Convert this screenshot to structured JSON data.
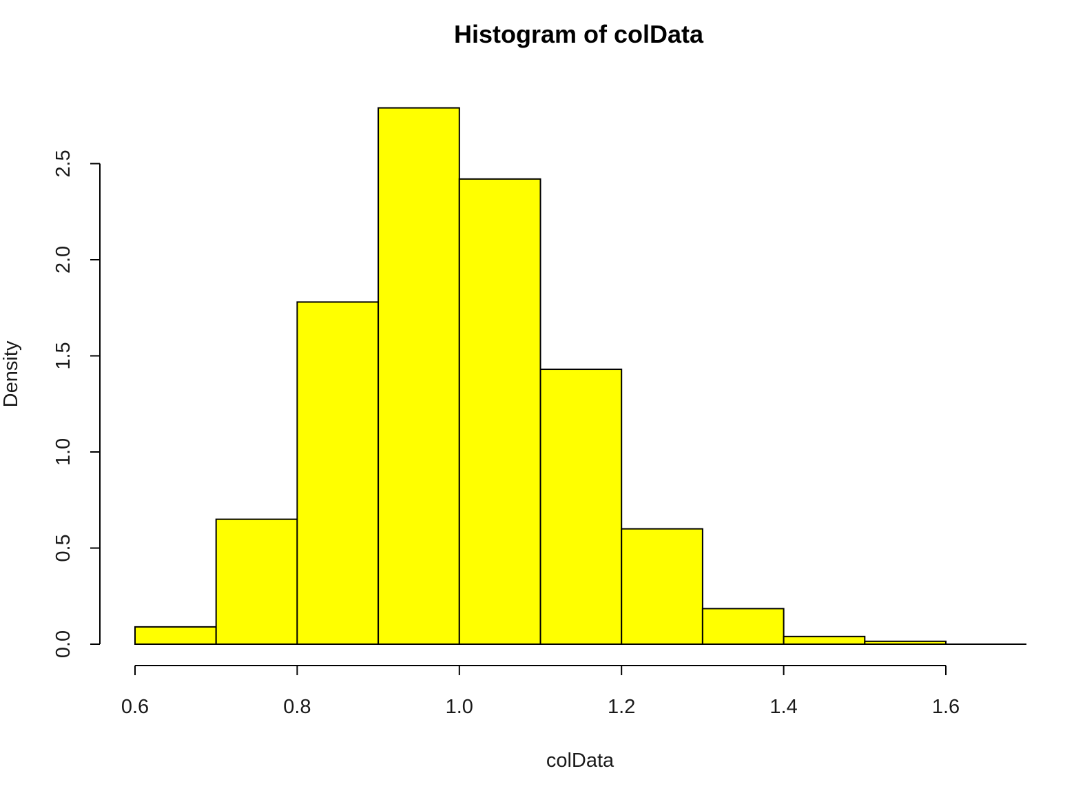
{
  "chart_data": {
    "type": "bar",
    "title": "Histogram of colData",
    "xlabel": "colData",
    "ylabel": "Density",
    "bin_edges": [
      0.6,
      0.7,
      0.8,
      0.9,
      1.0,
      1.1,
      1.2,
      1.3,
      1.4,
      1.5,
      1.6,
      1.7
    ],
    "values": [
      0.09,
      0.65,
      1.78,
      2.79,
      2.42,
      1.43,
      0.6,
      0.185,
      0.04,
      0.015,
      0.0
    ],
    "xlim": [
      0.6,
      1.7
    ],
    "ylim": [
      0,
      2.8
    ],
    "xticks": [
      "0.6",
      "0.8",
      "1.0",
      "1.2",
      "1.4",
      "1.6"
    ],
    "yticks": [
      "0.0",
      "0.5",
      "1.0",
      "1.5",
      "2.0",
      "2.5"
    ],
    "fill_color": "#ffff00",
    "edge_color": "#000000",
    "grid": false,
    "legend": "none"
  }
}
